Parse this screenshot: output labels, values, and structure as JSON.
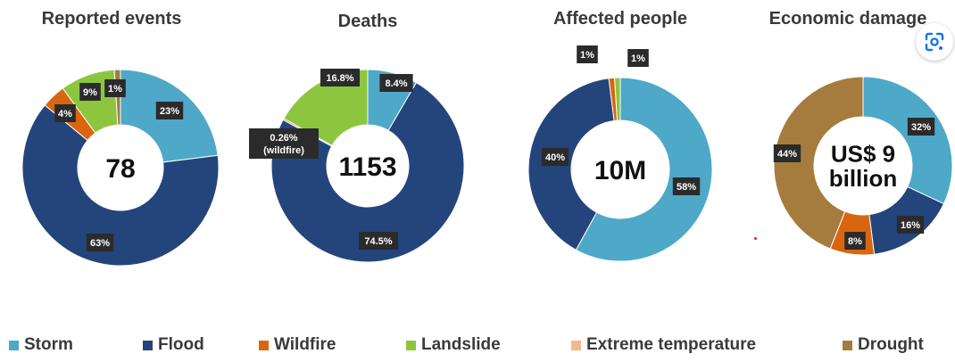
{
  "colors": {
    "Storm": "#4ea8c8",
    "Flood": "#24457c",
    "Wildfire": "#d9660f",
    "Landslide": "#8cc63f",
    "Extreme temperature": "#f5b88a",
    "Drought": "#a57c3e"
  },
  "lens_icon": "google-lens-icon",
  "chart_data": [
    {
      "type": "pie",
      "title": "Reported events",
      "center": "78",
      "slices": [
        {
          "category": "Storm",
          "value": 23,
          "label": "23%"
        },
        {
          "category": "Flood",
          "value": 63,
          "label": "63%"
        },
        {
          "category": "Wildfire",
          "value": 4,
          "label": "4%"
        },
        {
          "category": "Landslide",
          "value": 9,
          "label": "9%"
        },
        {
          "category": "Drought",
          "value": 1,
          "label": "1%"
        }
      ]
    },
    {
      "type": "pie",
      "title": "Deaths",
      "center": "1153",
      "slices": [
        {
          "category": "Storm",
          "value": 8.4,
          "label": "8.4%"
        },
        {
          "category": "Flood",
          "value": 74.5,
          "label": "74.5%"
        },
        {
          "category": "Wildfire",
          "value": 0.26,
          "label": "0.26%\n(wildfire)"
        },
        {
          "category": "Landslide",
          "value": 16.8,
          "label": "16.8%"
        }
      ]
    },
    {
      "type": "pie",
      "title": "Affected people",
      "center": "10M",
      "slices": [
        {
          "category": "Storm",
          "value": 58,
          "label": "58%"
        },
        {
          "category": "Flood",
          "value": 40,
          "label": "40%"
        },
        {
          "category": "Wildfire",
          "value": 1,
          "label": "1%"
        },
        {
          "category": "Landslide",
          "value": 1,
          "label": "1%"
        }
      ]
    },
    {
      "type": "pie",
      "title": "Economic damage",
      "center": "US$ 9\nbillion",
      "slices": [
        {
          "category": "Storm",
          "value": 32,
          "label": "32%"
        },
        {
          "category": "Flood",
          "value": 16,
          "label": "16%"
        },
        {
          "category": "Wildfire",
          "value": 8,
          "label": "8%"
        },
        {
          "category": "Drought",
          "value": 44,
          "label": "44%"
        }
      ]
    }
  ],
  "legend": [
    "Storm",
    "Flood",
    "Wildfire",
    "Landslide",
    "Extreme temperature",
    "Drought"
  ]
}
